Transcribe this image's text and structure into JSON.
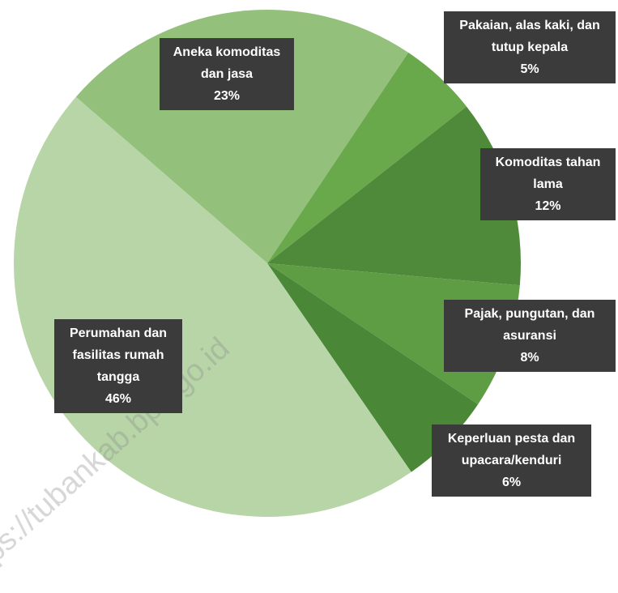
{
  "chart_data": {
    "type": "pie",
    "categories": [
      "Aneka komoditas dan jasa",
      "Pakaian, alas kaki, dan tutup kepala",
      "Komoditas tahan lama",
      "Pajak, pungutan, dan asuransi",
      "Keperluan pesta dan upacara/kenduri",
      "Perumahan dan fasilitas rumah tangga"
    ],
    "values": [
      23,
      5,
      12,
      8,
      6,
      46
    ],
    "value_labels": [
      "23%",
      "5%",
      "12%",
      "8%",
      "6%",
      "46%"
    ],
    "colors": [
      "#93c07b",
      "#6aa94b",
      "#4f8a3b",
      "#5f9d45",
      "#4a8837",
      "#b7d5a7"
    ],
    "watermark": "https://tubankab.bps.go.id"
  }
}
